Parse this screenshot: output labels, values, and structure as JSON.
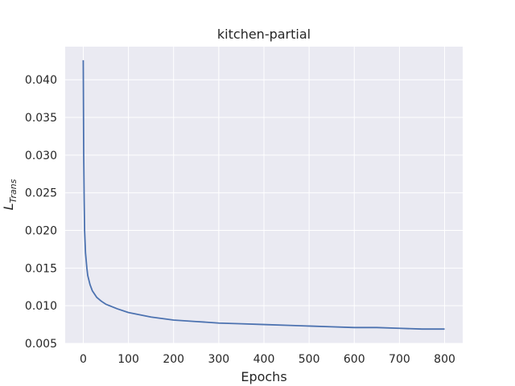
{
  "chart_data": {
    "type": "line",
    "title": "kitchen-partial",
    "xlabel": "Epochs",
    "ylabel": "L",
    "ylabel_subscript": "Trans",
    "x": [
      0,
      1,
      2,
      3,
      5,
      8,
      10,
      15,
      20,
      30,
      40,
      50,
      75,
      100,
      150,
      200,
      250,
      300,
      350,
      400,
      450,
      500,
      550,
      600,
      650,
      700,
      750,
      800
    ],
    "series": [
      {
        "color": "#4c72b0",
        "values": [
          0.0426,
          0.03,
          0.024,
          0.02,
          0.017,
          0.015,
          0.014,
          0.0128,
          0.012,
          0.0111,
          0.0106,
          0.0102,
          0.0096,
          0.0091,
          0.0085,
          0.0081,
          0.0079,
          0.0077,
          0.0076,
          0.0075,
          0.0074,
          0.0073,
          0.0072,
          0.0071,
          0.0071,
          0.007,
          0.0069,
          0.0069
        ]
      }
    ],
    "xlim": [
      -40,
      840
    ],
    "ylim": [
      0.005,
      0.0444
    ],
    "xticks": [
      0,
      100,
      200,
      300,
      400,
      500,
      600,
      700,
      800
    ],
    "yticks": [
      0.005,
      {
        "value": 0.01,
        "label": "0.010"
      },
      0.015,
      {
        "value": 0.02,
        "label": "0.020"
      },
      0.025,
      {
        "value": 0.03,
        "label": "0.030"
      },
      0.035,
      {
        "value": 0.04,
        "label": "0.040"
      }
    ],
    "grid": true,
    "background": "#eaeaf2"
  }
}
